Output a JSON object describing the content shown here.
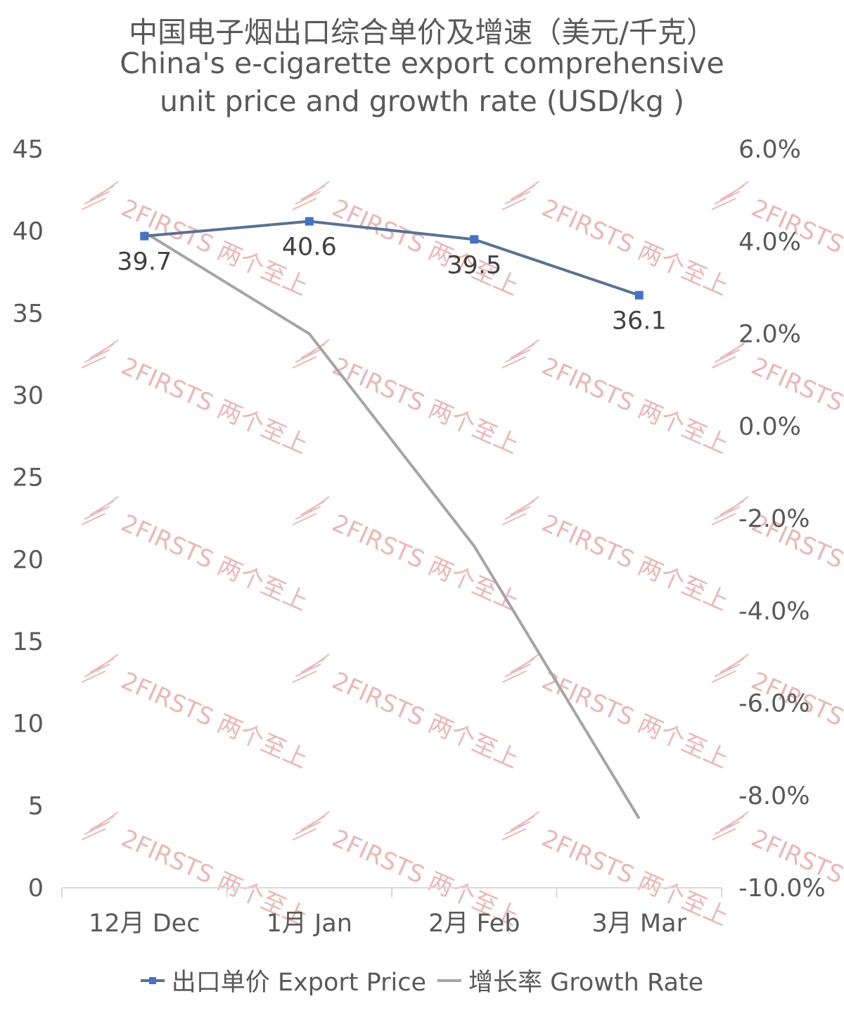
{
  "chart_data": {
    "type": "line",
    "title": "中国电子烟出口综合单价及增速（美元/千克）",
    "subtitle_lines": [
      "China's e-cigarette export comprehensive",
      "unit price and growth rate (USD/kg )"
    ],
    "categories": [
      "12月 Dec",
      "1月 Jan",
      "2月 Feb",
      "3月 Mar"
    ],
    "series": [
      {
        "name": "出口单价 Export Price",
        "axis": "left",
        "values": [
          39.7,
          40.6,
          39.5,
          36.1
        ],
        "data_labels": [
          "39.7",
          "40.6",
          "39.5",
          "36.1"
        ],
        "color": "#5b7190",
        "marker_color": "#4472c4"
      },
      {
        "name": "增长率 Growth Rate",
        "axis": "right",
        "values": [
          4.2,
          2.0,
          -2.6,
          -8.5
        ],
        "color": "#a5a5a5"
      }
    ],
    "ylim_left": [
      0,
      45
    ],
    "yticks_left": [
      "0",
      "5",
      "10",
      "15",
      "20",
      "25",
      "30",
      "35",
      "40",
      "45"
    ],
    "ylim_right": [
      -10,
      6
    ],
    "yticks_right": [
      "-10.0%",
      "-8.0%",
      "-6.0%",
      "-4.0%",
      "-2.0%",
      "0.0%",
      "2.0%",
      "4.0%",
      "6.0%"
    ],
    "grid": false,
    "legend_position": "bottom"
  },
  "watermark": {
    "text": "2FIRSTS 两个至上",
    "color": "#e8b8b8"
  }
}
